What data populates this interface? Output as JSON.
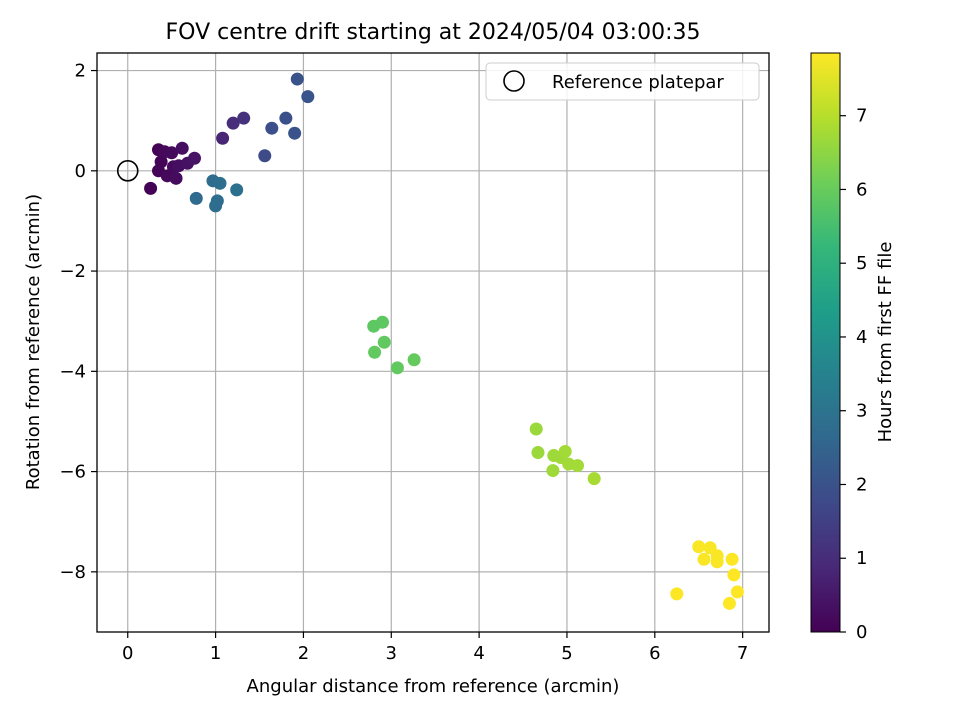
{
  "chart_data": {
    "type": "scatter",
    "title": "FOV centre drift starting at 2024/05/04 03:00:35",
    "xlabel": "Angular distance from reference (arcmin)",
    "ylabel": "Rotation from reference (arcmin)",
    "xlim": [
      -0.35,
      7.3
    ],
    "ylim": [
      -9.2,
      2.35
    ],
    "xticks": [
      0,
      1,
      2,
      3,
      4,
      5,
      6,
      7
    ],
    "xtick_labels": [
      "0",
      "1",
      "2",
      "3",
      "4",
      "5",
      "6",
      "7"
    ],
    "yticks": [
      2,
      0,
      -2,
      -4,
      -6,
      -8
    ],
    "ytick_labels": [
      "2",
      "0",
      "−2",
      "−4",
      "−6",
      "−8"
    ],
    "grid": true,
    "legend": {
      "position": "top-right",
      "entries": [
        "Reference platepar"
      ]
    },
    "reference_point": {
      "x": 0,
      "y": 0
    },
    "colorbar": {
      "label": "Hours from first FF file",
      "min": 0,
      "max": 7.85,
      "ticks": [
        0,
        1,
        2,
        3,
        4,
        5,
        6,
        7
      ],
      "tick_labels": [
        "0",
        "1",
        "2",
        "3",
        "4",
        "5",
        "6",
        "7"
      ],
      "colormap": [
        "#440154",
        "#482878",
        "#3e4989",
        "#31688e",
        "#26828e",
        "#1f9e89",
        "#35b779",
        "#6ece58",
        "#b5de2b",
        "#fde725"
      ]
    },
    "series": [
      {
        "points": [
          {
            "x": 0.26,
            "y": -0.35,
            "c": 0.05
          },
          {
            "x": 0.35,
            "y": 0.42,
            "c": 0.05
          },
          {
            "x": 0.38,
            "y": 0.18,
            "c": 0.1
          },
          {
            "x": 0.35,
            "y": 0.0,
            "c": 0.1
          },
          {
            "x": 0.42,
            "y": 0.38,
            "c": 0.15
          },
          {
            "x": 0.45,
            "y": -0.1,
            "c": 0.15
          },
          {
            "x": 0.5,
            "y": 0.36,
            "c": 0.2
          },
          {
            "x": 0.52,
            "y": 0.08,
            "c": 0.2
          },
          {
            "x": 0.55,
            "y": -0.15,
            "c": 0.25
          },
          {
            "x": 0.58,
            "y": 0.1,
            "c": 0.3
          },
          {
            "x": 0.62,
            "y": 0.45,
            "c": 0.3
          },
          {
            "x": 0.68,
            "y": 0.15,
            "c": 0.35
          },
          {
            "x": 0.76,
            "y": 0.25,
            "c": 0.4
          },
          {
            "x": 1.08,
            "y": 0.65,
            "c": 0.8
          },
          {
            "x": 1.2,
            "y": 0.95,
            "c": 1.0
          },
          {
            "x": 1.32,
            "y": 1.05,
            "c": 1.1
          },
          {
            "x": 1.56,
            "y": 0.3,
            "c": 1.8
          },
          {
            "x": 1.64,
            "y": 0.85,
            "c": 1.9
          },
          {
            "x": 1.8,
            "y": 1.05,
            "c": 1.95
          },
          {
            "x": 1.9,
            "y": 0.75,
            "c": 2.0
          },
          {
            "x": 1.93,
            "y": 1.83,
            "c": 2.0
          },
          {
            "x": 2.05,
            "y": 1.48,
            "c": 2.05
          },
          {
            "x": 0.78,
            "y": -0.55,
            "c": 2.7
          },
          {
            "x": 0.97,
            "y": -0.2,
            "c": 2.75
          },
          {
            "x": 1.0,
            "y": -0.7,
            "c": 2.8
          },
          {
            "x": 1.02,
            "y": -0.6,
            "c": 2.8
          },
          {
            "x": 1.05,
            "y": -0.25,
            "c": 2.85
          },
          {
            "x": 1.24,
            "y": -0.38,
            "c": 2.9
          },
          {
            "x": 2.8,
            "y": -3.1,
            "c": 5.85
          },
          {
            "x": 2.9,
            "y": -3.02,
            "c": 5.85
          },
          {
            "x": 2.92,
            "y": -3.42,
            "c": 5.9
          },
          {
            "x": 2.81,
            "y": -3.62,
            "c": 5.9
          },
          {
            "x": 3.07,
            "y": -3.93,
            "c": 5.9
          },
          {
            "x": 3.26,
            "y": -3.77,
            "c": 5.95
          },
          {
            "x": 4.65,
            "y": -5.15,
            "c": 6.65
          },
          {
            "x": 4.67,
            "y": -5.62,
            "c": 6.65
          },
          {
            "x": 4.85,
            "y": -5.68,
            "c": 6.7
          },
          {
            "x": 4.84,
            "y": -5.98,
            "c": 6.7
          },
          {
            "x": 4.93,
            "y": -5.72,
            "c": 6.7
          },
          {
            "x": 4.98,
            "y": -5.6,
            "c": 6.75
          },
          {
            "x": 5.02,
            "y": -5.85,
            "c": 6.75
          },
          {
            "x": 5.12,
            "y": -5.88,
            "c": 6.75
          },
          {
            "x": 5.31,
            "y": -6.14,
            "c": 6.8
          },
          {
            "x": 6.5,
            "y": -7.5,
            "c": 7.8
          },
          {
            "x": 6.56,
            "y": -7.75,
            "c": 7.8
          },
          {
            "x": 6.63,
            "y": -7.52,
            "c": 7.8
          },
          {
            "x": 6.71,
            "y": -7.68,
            "c": 7.8
          },
          {
            "x": 6.71,
            "y": -7.8,
            "c": 7.8
          },
          {
            "x": 6.88,
            "y": -7.75,
            "c": 7.85
          },
          {
            "x": 6.9,
            "y": -8.06,
            "c": 7.85
          },
          {
            "x": 6.94,
            "y": -8.4,
            "c": 7.85
          },
          {
            "x": 6.25,
            "y": -8.44,
            "c": 7.85
          },
          {
            "x": 6.85,
            "y": -8.63,
            "c": 7.85
          }
        ]
      }
    ]
  }
}
